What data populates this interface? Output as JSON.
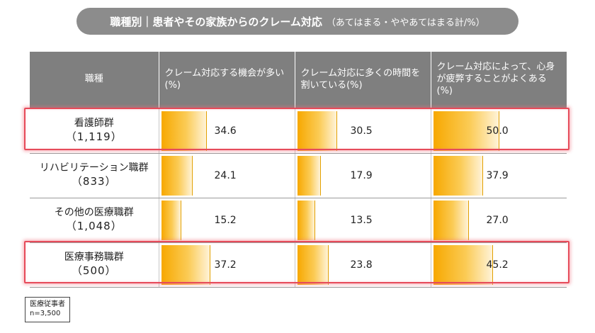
{
  "title": {
    "main": "職種別｜患者やその家族からのクレーム対応",
    "sub": "（あてはまる・ややあてはまる計/%）"
  },
  "header": {
    "role": "職種",
    "col1": "クレーム対応する機会が多い(%)",
    "col2": "クレーム対応に多くの時間を割いている(%)",
    "col3": "クレーム対応によって、心身が疲弊することがよくある(%)"
  },
  "note": {
    "line1": "医療従事者",
    "line2": "n=3,500"
  },
  "colors": {
    "bar_strong": "#f7a800",
    "bar_light": "#fff3d8",
    "header_bg": "#7f7f7f",
    "highlight": "#e64b5a"
  },
  "chart_data": {
    "type": "table",
    "title": "職種別｜患者やその家族からのクレーム対応（あてはまる・ややあてはまる計/%）",
    "columns": [
      "クレーム対応する機会が多い(%)",
      "クレーム対応に多くの時間を割いている(%)",
      "クレーム対応によって、心身が疲弊することがよくある(%)"
    ],
    "rows": [
      {
        "name": "看護師群",
        "n": "（1,119）",
        "values": [
          "34.6",
          "30.5",
          "50.0"
        ],
        "highlighted": true
      },
      {
        "name": "リハビリテーション職群",
        "n": "（833）",
        "values": [
          "24.1",
          "17.9",
          "37.9"
        ],
        "highlighted": false
      },
      {
        "name": "その他の医療職群",
        "n": "（1,048）",
        "values": [
          "15.2",
          "13.5",
          "27.0"
        ],
        "highlighted": false
      },
      {
        "name": "医療事務職群",
        "n": "（500）",
        "values": [
          "37.2",
          "23.8",
          "45.2"
        ],
        "highlighted": true
      }
    ],
    "value_max": 100
  }
}
